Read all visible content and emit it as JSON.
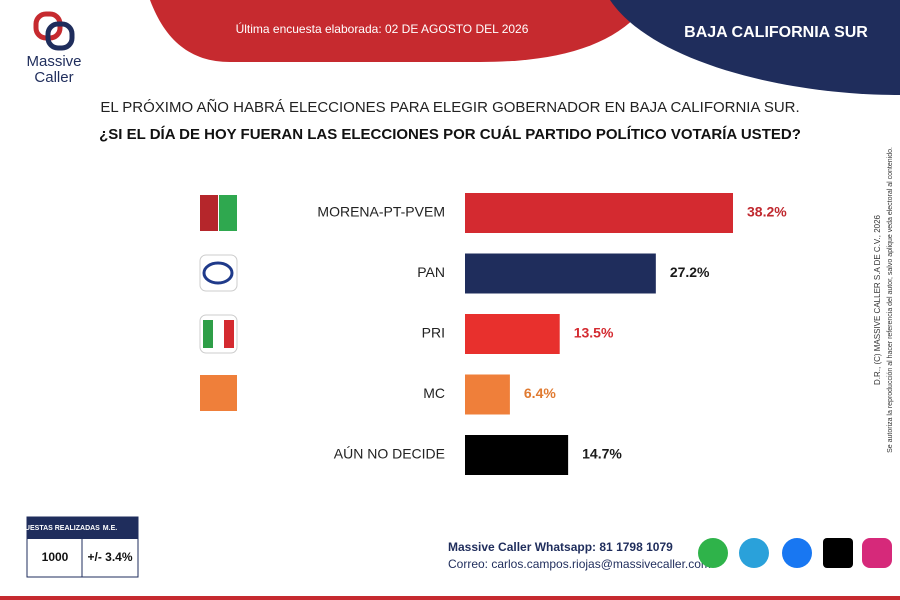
{
  "header": {
    "brand": "Massive",
    "brand2": "Caller",
    "survey_date": "Última encuesta elaborada: 02 DE AGOSTO DEL 2026",
    "region": "BAJA CALIFORNIA SUR"
  },
  "chart_data": {
    "type": "bar",
    "orientation": "horizontal",
    "title": "EL PRÓXIMO AÑO HABRÁ ELECCIONES PARA ELEGIR GOBERNADOR EN BAJA CALIFORNIA SUR.",
    "subtitle": "¿SI EL DÍA DE HOY FUERAN LAS ELECCIONES POR CUÁL PARTIDO POLÍTICO VOTARÍA USTED?",
    "categories": [
      "MORENA-PT-PVEM",
      "PAN",
      "PRI",
      "MC",
      "AÚN NO DECIDE"
    ],
    "values": [
      38.2,
      27.2,
      13.5,
      6.4,
      14.7
    ],
    "value_labels": [
      "38.2%",
      "27.2%",
      "13.5%",
      "6.4%",
      "14.7%"
    ],
    "colors": [
      "#d42a30",
      "#1f2d5c",
      "#e8302d",
      "#ef7f3a",
      "#000000"
    ],
    "label_colors": [
      "#c0282e",
      "#1a1a1a",
      "#d42a30",
      "#e07a30",
      "#1a1a1a"
    ]
  },
  "methodology": {
    "headers": [
      "ENCUESTAS REALIZADAS",
      "M.E."
    ],
    "row": [
      "1000",
      "+/- 3.4%"
    ]
  },
  "footer": {
    "whatsapp": "Massive Caller Whatsapp: 81 1798 1079",
    "email": "Correo: carlos.campos.riojas@massivecaller.com"
  },
  "copyright": [
    "D.R., (C) MASSIVE CALLER S.A DE C.V., 2026",
    "Se autoriza la reproducción al hacer referencia del autor, salvo aplique veda electoral al contenido."
  ]
}
